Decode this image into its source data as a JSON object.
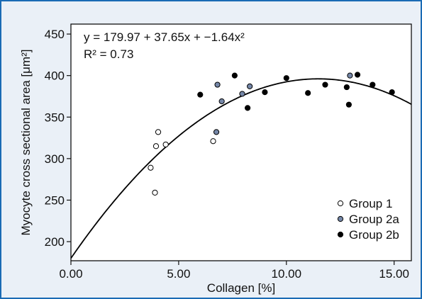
{
  "chart_data": {
    "type": "scatter",
    "xlabel": "Collagen [%]",
    "ylabel": "Myocyte cross sectional area [μm²]",
    "xlim": [
      0,
      15.8
    ],
    "ylim": [
      177,
      462
    ],
    "x_ticks": [
      "0.00",
      "5.00",
      "10.00",
      "15.00"
    ],
    "x_tick_values": [
      0,
      5,
      10,
      15
    ],
    "y_ticks": [
      "200",
      "250",
      "300",
      "350",
      "400",
      "450"
    ],
    "y_tick_values": [
      200,
      250,
      300,
      350,
      400,
      450
    ],
    "equation": "y = 179.97 + 37.65x + −1.64x²",
    "r_squared": "R² = 0.73",
    "fit": {
      "a": 179.97,
      "b": 37.65,
      "c": -1.64
    },
    "legend_position": "bottom-right",
    "series": [
      {
        "name": "Group 1",
        "color": "#ffffff",
        "points": [
          [
            3.7,
            289
          ],
          [
            3.9,
            259
          ],
          [
            3.95,
            315
          ],
          [
            4.05,
            332
          ],
          [
            4.4,
            317
          ],
          [
            6.6,
            321
          ]
        ]
      },
      {
        "name": "Group 2a",
        "color": "#7587a8",
        "points": [
          [
            6.75,
            332
          ],
          [
            6.8,
            389
          ],
          [
            7.0,
            369
          ],
          [
            7.95,
            378
          ],
          [
            8.3,
            387
          ],
          [
            12.95,
            400
          ]
        ]
      },
      {
        "name": "Group 2b",
        "color": "#000000",
        "points": [
          [
            6.0,
            377
          ],
          [
            7.6,
            400
          ],
          [
            8.2,
            361
          ],
          [
            9.0,
            380
          ],
          [
            10.0,
            397
          ],
          [
            11.0,
            379
          ],
          [
            11.8,
            389
          ],
          [
            12.8,
            386
          ],
          [
            12.9,
            365
          ],
          [
            13.3,
            401
          ],
          [
            14.0,
            389
          ],
          [
            14.9,
            380
          ]
        ]
      }
    ]
  }
}
